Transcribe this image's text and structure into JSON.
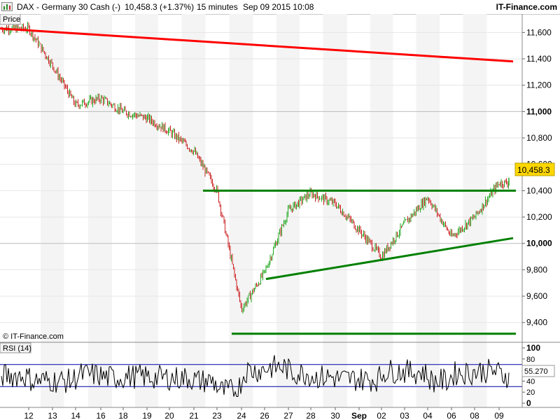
{
  "header": {
    "symbol_title": "DAX - Germany 30 Cash (-)",
    "last_price_change": "10,458.3 (+1.37%)",
    "interval": "15 minutes",
    "timestamp": "Sep 09 2015 10:08",
    "brand": "IT-Finance.com",
    "logo_icon": "bar-chart-logo-icon"
  },
  "price_panel": {
    "label": "Price",
    "copyright": "© IT-Finance.com",
    "last_price_tag": "10,458.3",
    "tag_color": "#ffd700"
  },
  "rsi_panel": {
    "label": "RSI (14)",
    "last_value_tag": "55.270",
    "tick_labels": [
      "100",
      "80",
      "60",
      "40",
      "20",
      "0"
    ]
  },
  "x_axis": {
    "labels": [
      "12",
      "13",
      "14",
      "16",
      "18",
      "19",
      "20",
      "21",
      "23",
      "24",
      "26",
      "27",
      "28",
      "30",
      "Sep",
      "02",
      "03",
      "04",
      "06",
      "08",
      "09"
    ]
  },
  "colors": {
    "trendline_red": "#ff0000",
    "trendline_green": "#008000",
    "candle_up": "#22aa22",
    "candle_down": "#cc2222",
    "rsi_band_line": "#0000aa"
  },
  "chart_data": [
    {
      "type": "candlestick",
      "title": "DAX - Germany 30 Cash (-)",
      "interval": "15 minutes",
      "x_categories": [
        "12",
        "13",
        "14",
        "16",
        "18",
        "19",
        "20",
        "21",
        "23",
        "24",
        "26",
        "27",
        "28",
        "30",
        "Sep",
        "02",
        "03",
        "04",
        "06",
        "08",
        "09"
      ],
      "y_ticks": [
        "11,600",
        "11,400",
        "11,200",
        "11,000",
        "10,800",
        "10,600",
        "10,400",
        "10,200",
        "10,000",
        "9,800",
        "9,600",
        "9,400"
      ],
      "ylim": [
        9250,
        11740
      ],
      "last_value": 10458.3,
      "approx_closes": [
        11630,
        11350,
        11050,
        11100,
        11000,
        10950,
        10850,
        10700,
        10400,
        9500,
        9780,
        10250,
        10380,
        10300,
        10100,
        9900,
        10150,
        10350,
        10050,
        10200,
        10460
      ],
      "trendlines": [
        {
          "color": "red",
          "from": [
            11630,
            "12"
          ],
          "to": [
            11380,
            "09"
          ]
        },
        {
          "color": "green",
          "level": 10400,
          "from": "21",
          "to": "09"
        },
        {
          "color": "green",
          "from": [
            9730,
            "26"
          ],
          "to": [
            10040,
            "09"
          ]
        },
        {
          "color": "green",
          "level": 9315,
          "from": "24",
          "to": "09"
        }
      ]
    },
    {
      "type": "line",
      "title": "RSI (14)",
      "y_ticks": [
        "100",
        "80",
        "60",
        "40",
        "20",
        "0"
      ],
      "ylim": [
        0,
        100
      ],
      "reference_lines": [
        70,
        30
      ],
      "last_value": 55.27
    }
  ]
}
